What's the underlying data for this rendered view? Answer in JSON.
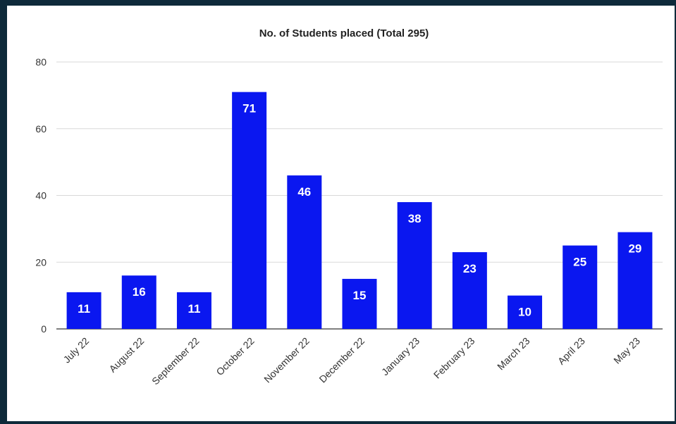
{
  "chart_data": {
    "type": "bar",
    "title": "No. of Students placed (Total 295)",
    "xlabel": "",
    "ylabel": "",
    "categories": [
      "July 22",
      "August 22",
      "September 22",
      "October 22",
      "November 22",
      "December 22",
      "January 23",
      "February 23",
      "March 23",
      "April 23",
      "May 23"
    ],
    "values": [
      11,
      16,
      11,
      71,
      46,
      15,
      38,
      23,
      10,
      25,
      29
    ],
    "ylim": [
      0,
      80
    ],
    "yticks": [
      0,
      20,
      40,
      60,
      80
    ],
    "grid": true,
    "bar_color": "#0a17f0",
    "data_labels": true
  }
}
